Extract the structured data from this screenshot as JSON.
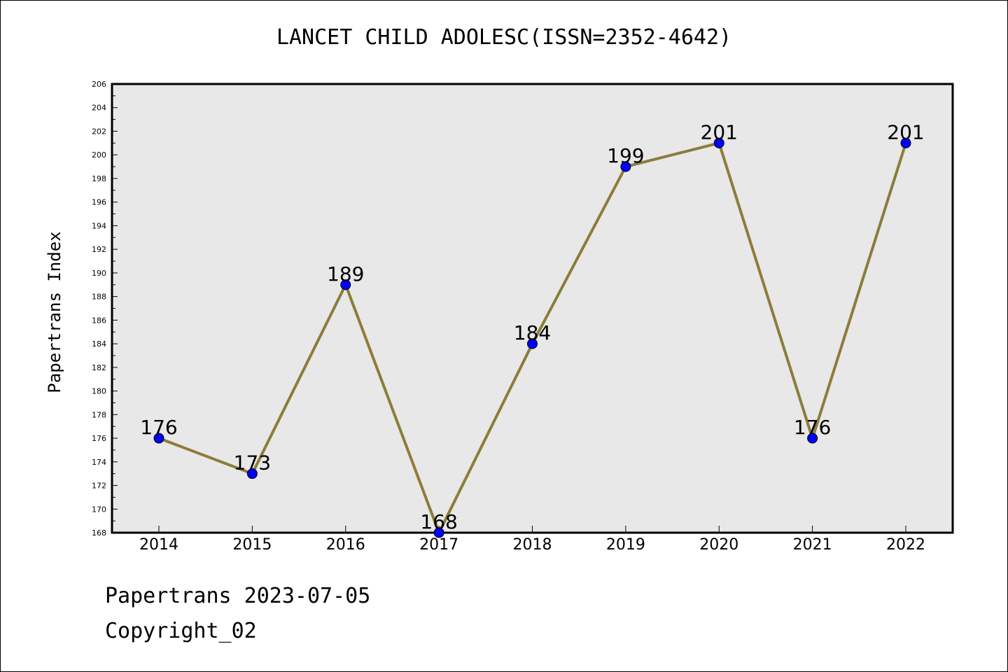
{
  "chart_data": {
    "type": "line",
    "title": "LANCET CHILD ADOLESC(ISSN=2352-4642)",
    "xlabel": "",
    "ylabel": "Papertrans Index",
    "categories": [
      "2014",
      "2015",
      "2016",
      "2017",
      "2018",
      "2019",
      "2020",
      "2021",
      "2022"
    ],
    "series": [
      {
        "values": [
          176,
          173,
          189,
          168,
          184,
          199,
          201,
          176,
          201
        ]
      }
    ],
    "ylim": [
      168,
      206
    ],
    "y_ticks": [
      168,
      170,
      172,
      174,
      176,
      178,
      180,
      182,
      184,
      186,
      188,
      190,
      192,
      194,
      196,
      198,
      200,
      202,
      204,
      206
    ],
    "data_labels": true,
    "grid": false,
    "legend": "none",
    "colors": {
      "line": "#8b7d3a",
      "marker": "#0000ff",
      "plot_background": "#e8e8e8"
    }
  },
  "footer": {
    "line1": "Papertrans 2023-07-05",
    "line2": "Copyright_02"
  }
}
